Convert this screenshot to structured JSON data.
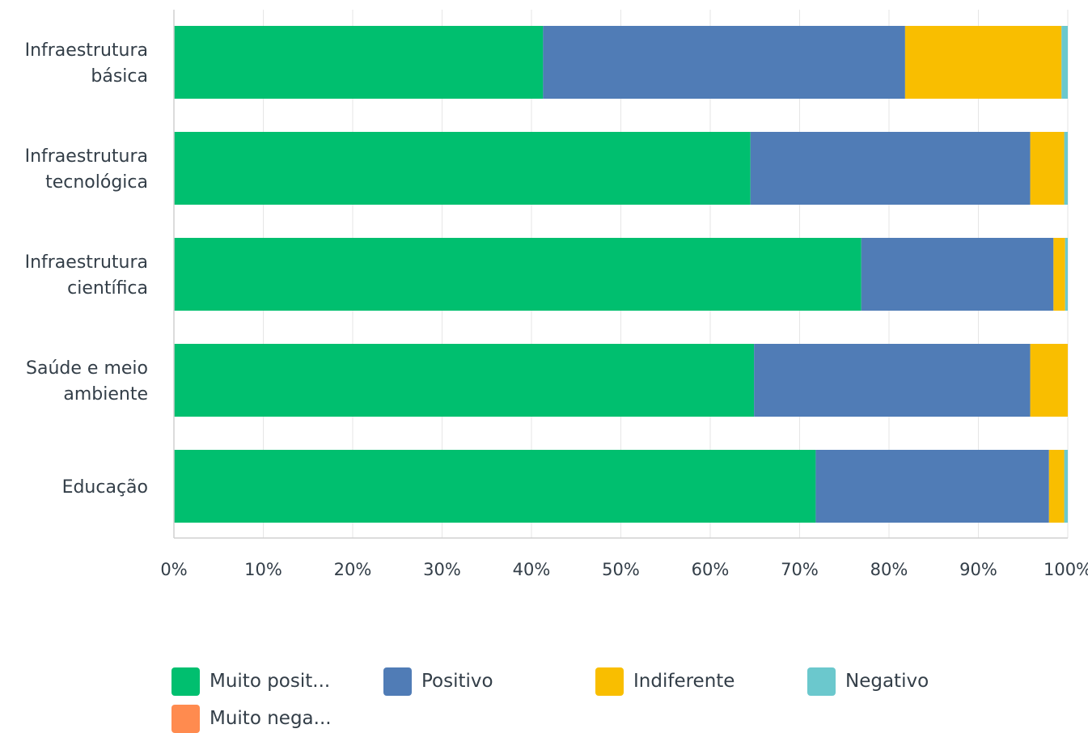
{
  "chart_data": {
    "type": "bar",
    "orientation": "horizontal",
    "stacked": true,
    "categories": [
      [
        "Infraestrutura",
        "básica"
      ],
      [
        "Infraestrutura",
        "tecnológica"
      ],
      [
        "Infraestrutura",
        "científica"
      ],
      [
        "Saúde e meio",
        "ambiente"
      ],
      [
        "Educação"
      ]
    ],
    "series": [
      {
        "name": "Muito posit...",
        "color": "#00bf6f",
        "values": [
          41.3,
          64.5,
          76.9,
          64.9,
          71.8
        ]
      },
      {
        "name": "Positivo",
        "color": "#507cb6",
        "values": [
          40.5,
          31.3,
          21.5,
          30.9,
          26.1
        ]
      },
      {
        "name": "Indiferente",
        "color": "#f9be00",
        "values": [
          17.5,
          3.8,
          1.3,
          4.2,
          1.7
        ]
      },
      {
        "name": "Negativo",
        "color": "#6bc8cd",
        "values": [
          0.7,
          0.4,
          0.3,
          0.0,
          0.4
        ]
      },
      {
        "name": "Muito nega...",
        "color": "#ff8b4f",
        "values": [
          0,
          0,
          0,
          0,
          0
        ]
      }
    ],
    "x_ticks": [
      "0%",
      "10%",
      "20%",
      "30%",
      "40%",
      "50%",
      "60%",
      "70%",
      "80%",
      "90%",
      "100%"
    ],
    "xlim": [
      0,
      100
    ],
    "grid": true,
    "legend_position": "bottom"
  }
}
